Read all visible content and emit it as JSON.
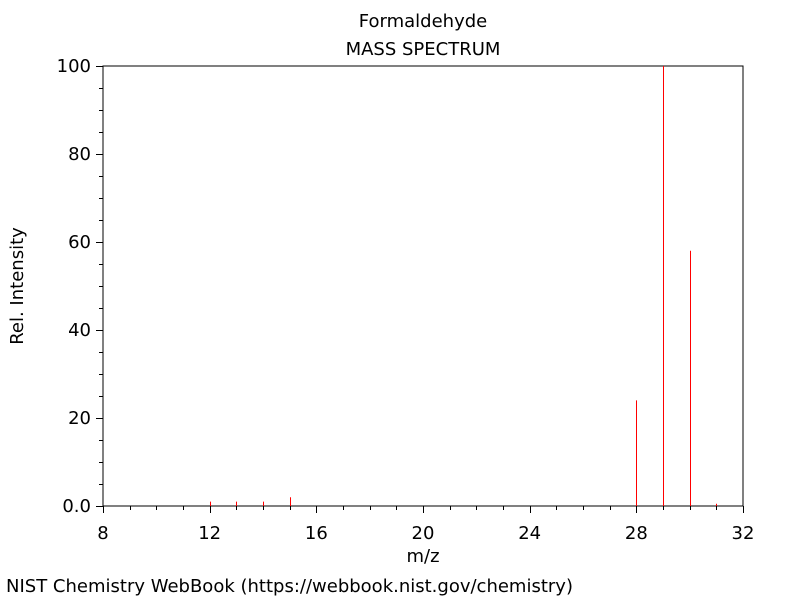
{
  "chart_data": {
    "type": "bar",
    "title": "Formaldehyde",
    "subtitle": "MASS SPECTRUM",
    "xlabel": "m/z",
    "ylabel": "Rel. Intensity",
    "xlim": [
      8,
      32
    ],
    "ylim": [
      0,
      100
    ],
    "x_ticks": [
      8,
      12,
      16,
      20,
      24,
      28,
      32
    ],
    "x_tick_labels": [
      "8",
      "12",
      "16",
      "20",
      "24",
      "28",
      "32"
    ],
    "y_ticks": [
      0,
      20,
      40,
      60,
      80,
      100
    ],
    "y_tick_labels": [
      "0.0",
      "20",
      "40",
      "60",
      "80",
      "100"
    ],
    "grid": false,
    "series": [
      {
        "x": [
          12,
          13,
          14,
          15,
          28,
          29,
          30,
          31
        ],
        "values": [
          1,
          1,
          1,
          2,
          24,
          100,
          58,
          0.5
        ]
      }
    ],
    "colors": {
      "peak": "#ff0000",
      "axis": "#000000",
      "background": "#ffffff"
    }
  },
  "source_note": "NIST Chemistry WebBook (https://webbook.nist.gov/chemistry)"
}
